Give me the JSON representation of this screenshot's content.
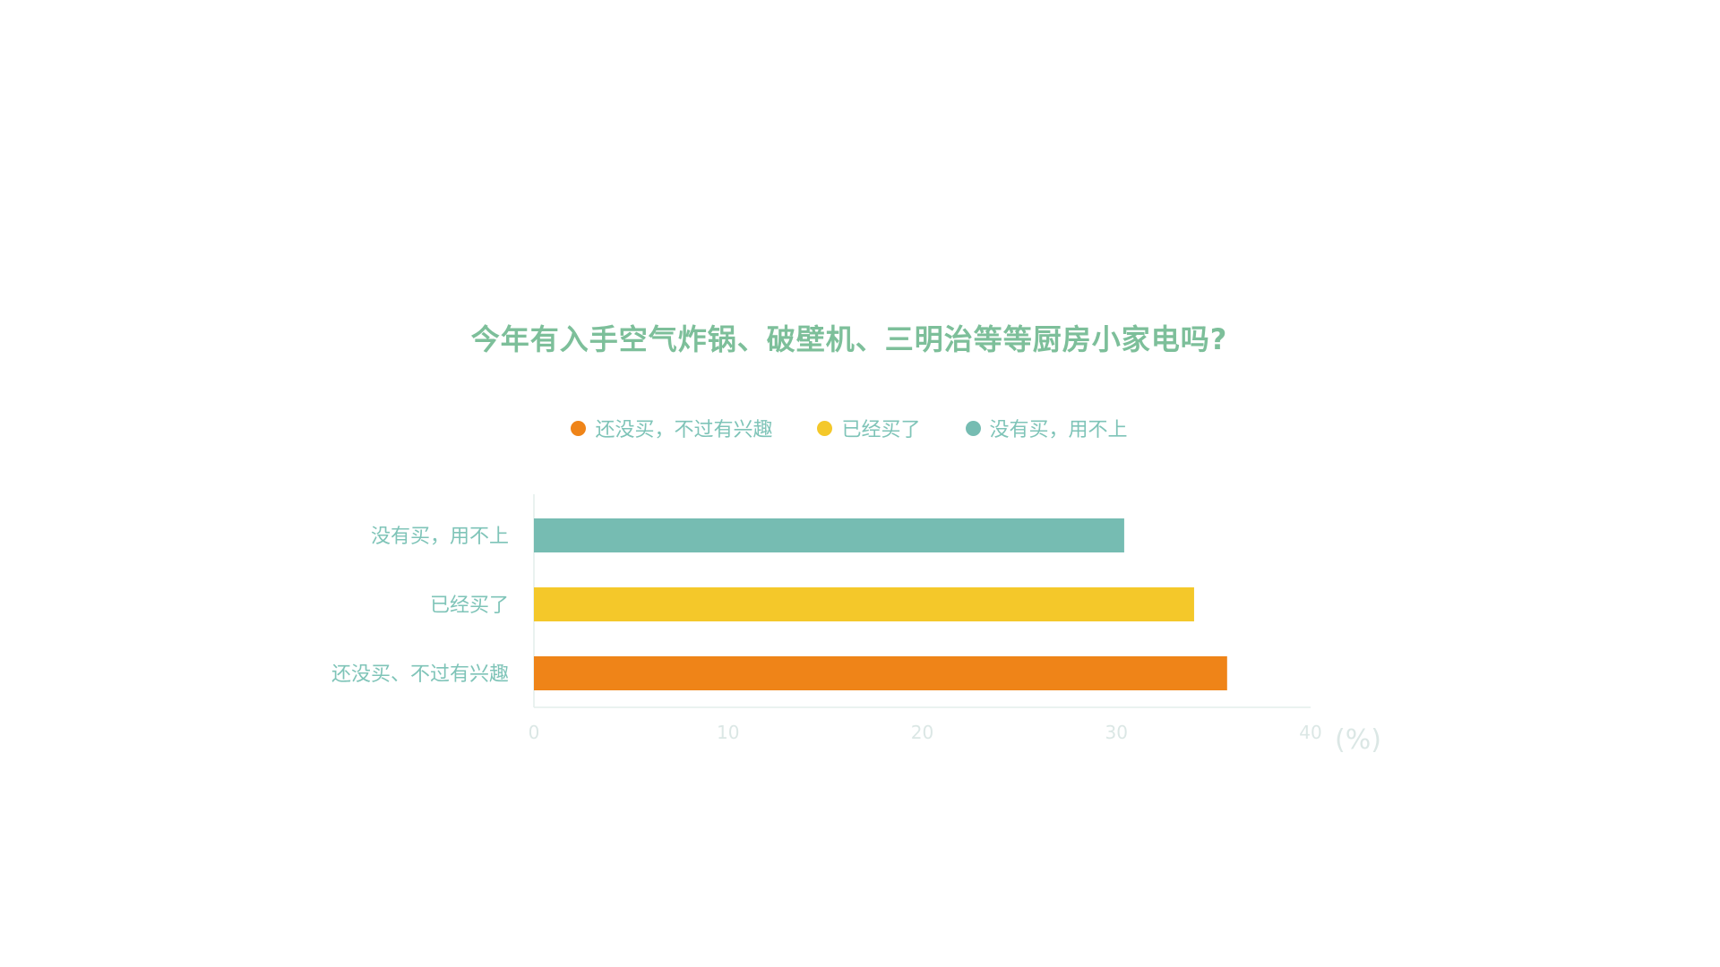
{
  "chart_data": {
    "type": "bar",
    "orientation": "horizontal",
    "title": "今年有入手空气炸锅、破壁机、三明治等等厨房小家电吗?",
    "categories": [
      "没有买，用不上",
      "已经买了",
      "还没买、不过有兴趣"
    ],
    "values": [
      30.4,
      34,
      35.7
    ],
    "colors": [
      "#76bcb2",
      "#f4c82a",
      "#ef8418"
    ],
    "legend": {
      "placement": "top",
      "items": [
        {
          "label": "还没买，不过有兴趣",
          "color": "#ef8418"
        },
        {
          "label": "已经买了",
          "color": "#f4c82a"
        },
        {
          "label": "没有买，用不上",
          "color": "#76bcb2"
        }
      ]
    },
    "xlim": [
      0,
      40
    ],
    "xticks": [
      "0",
      "10",
      "20",
      "30",
      "40"
    ],
    "xunit": "(%)",
    "grid": false
  }
}
